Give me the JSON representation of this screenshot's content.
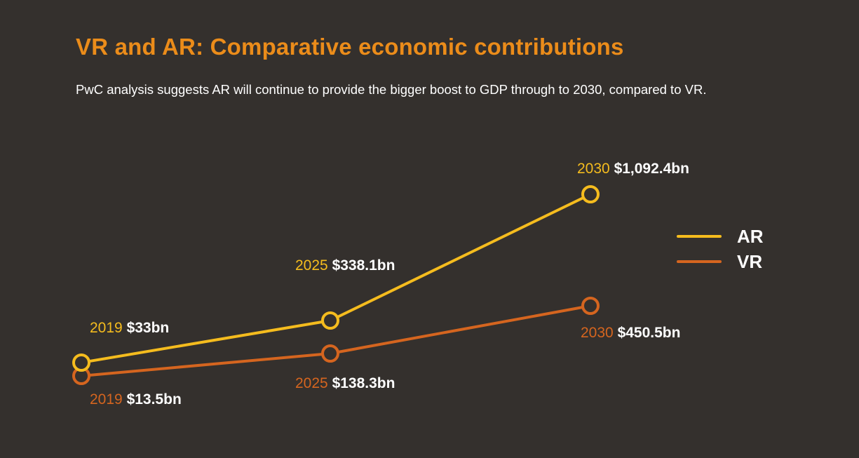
{
  "title": "VR and AR: Comparative economic contributions",
  "subtitle": "PwC analysis suggests AR will continue to provide the bigger boost to GDP through to 2030, compared to VR.",
  "colors": {
    "background": "#34302d",
    "title": "#eb8c1a",
    "AR": "#f5bc1e",
    "VR": "#d5651f",
    "value_text": "#ffffff"
  },
  "chart_data": {
    "type": "line",
    "title": "VR and AR: Comparative economic contributions",
    "subtitle": "PwC analysis suggests AR will continue to provide the bigger boost to GDP through to 2030, compared to VR.",
    "x": [
      "2019",
      "2025",
      "2030"
    ],
    "xlabel": "",
    "ylabel": "",
    "units": "$bn",
    "grid": false,
    "axes_visible": false,
    "legend_position": "right",
    "series": [
      {
        "name": "AR",
        "color": "#f5bc1e",
        "values": [
          33,
          338.1,
          1092.4
        ],
        "labels": [
          {
            "year": "2019",
            "value": "$33bn"
          },
          {
            "year": "2025",
            "value": "$338.1bn"
          },
          {
            "year": "2030",
            "value": "$1,092.4bn"
          }
        ]
      },
      {
        "name": "VR",
        "color": "#d5651f",
        "values": [
          13.5,
          138.3,
          450.5
        ],
        "labels": [
          {
            "year": "2019",
            "value": "$13.5bn"
          },
          {
            "year": "2025",
            "value": "$138.3bn"
          },
          {
            "year": "2030",
            "value": "$450.5bn"
          }
        ]
      }
    ],
    "legend": [
      "AR",
      "VR"
    ]
  }
}
